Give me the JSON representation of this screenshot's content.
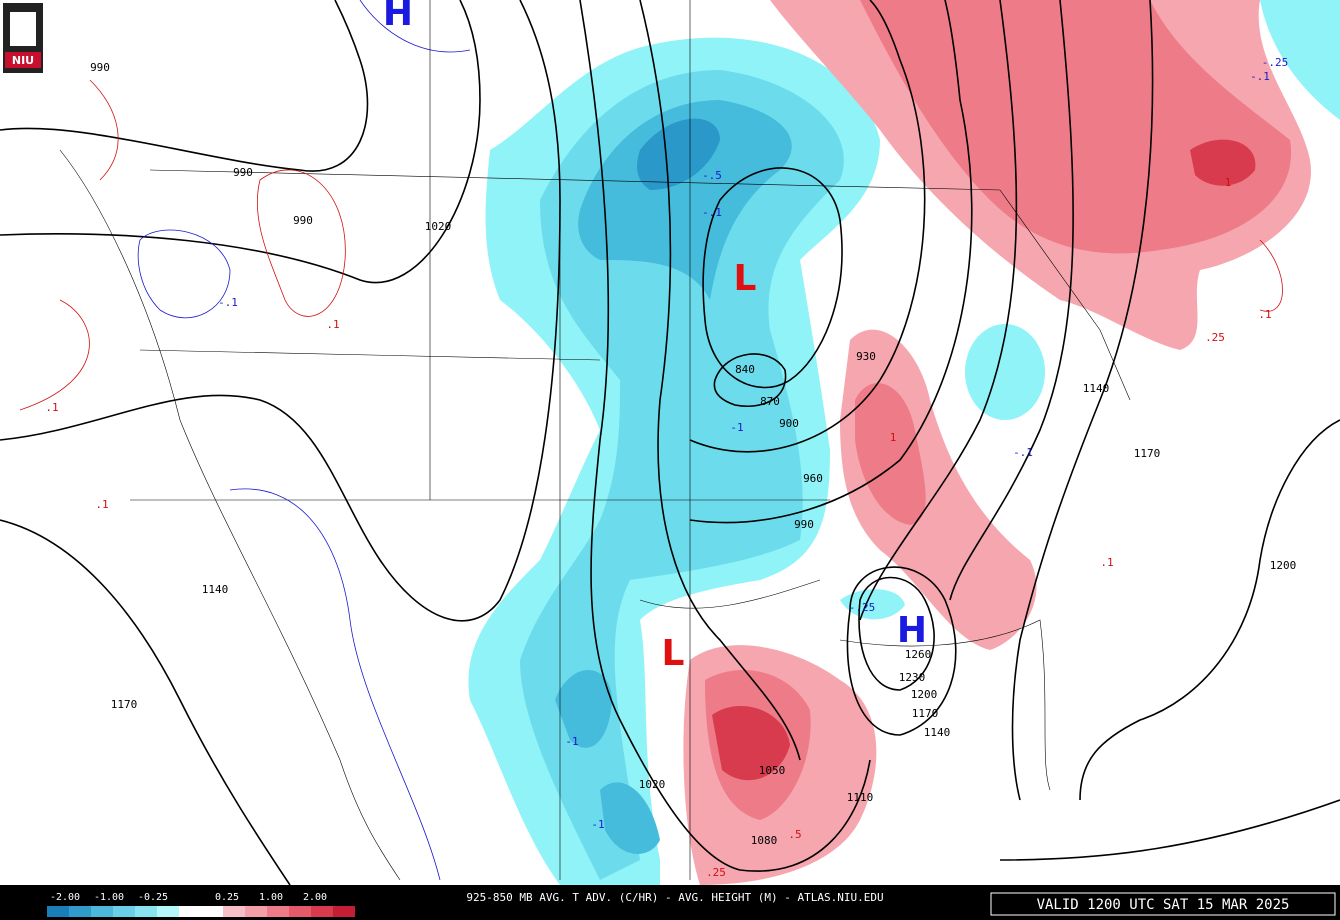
{
  "logo": "NIU",
  "centers": [
    "H",
    "L",
    "L",
    "H"
  ],
  "height_labels": [
    "990",
    "990",
    "990",
    "1020",
    "840",
    "870",
    "900",
    "930",
    "960",
    "990",
    "1020",
    "1050",
    "1080",
    "1110",
    "1140",
    "1170",
    "1200",
    "1230",
    "1260",
    "1140",
    "1170",
    "1200",
    "1140",
    "1170"
  ],
  "advection_labels": [
    ".1",
    "-.1",
    ".1",
    ".1",
    "-.5",
    "-.1",
    "-1",
    "1",
    "-.1",
    ".1",
    "-.25",
    "-.1",
    "1",
    ".25",
    ".1",
    "-.25",
    "-1",
    "-1",
    ".5",
    ".25"
  ],
  "colorbar": {
    "labels": [
      "-2.00",
      "-1.00",
      "-0.25",
      "0.25",
      "1.00",
      "2.00"
    ],
    "colors": [
      "#1a7fb8",
      "#2f9ccc",
      "#4cb8dc",
      "#6ad0e8",
      "#8ae4f0",
      "#b4f8fc",
      "#ffffff",
      "#ffffff",
      "#f8c0c6",
      "#f5a0a8",
      "#ee7c88",
      "#e45a6a",
      "#d83a4e",
      "#c41e36"
    ]
  },
  "footer": {
    "title": "925-850 MB AVG. T ADV. (C/HR) - AVG. HEIGHT (M) - ATLAS.NIU.EDU",
    "valid": "VALID 1200 UTC SAT 15 MAR 2025"
  }
}
